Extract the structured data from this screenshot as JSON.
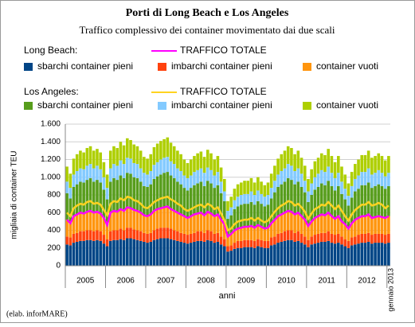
{
  "chart_data": {
    "type": "stacked-bar-line",
    "title": "Porti di Long Beach e Los Angeles",
    "subtitle": "Traffico complessivo dei container movimentato dai due scali",
    "ylabel": "migliaia di container TEU",
    "xlabel": "anni",
    "note": "(elab. inforMARE)",
    "x_groups": [
      "2005",
      "2006",
      "2007",
      "2008",
      "2009",
      "2010",
      "2011",
      "2012"
    ],
    "categories": [
      null,
      null,
      null,
      null,
      null,
      null,
      null,
      null,
      null,
      null,
      null,
      null,
      null,
      null,
      null,
      null,
      null,
      null,
      null,
      null,
      null,
      null,
      null,
      null,
      null,
      null,
      null,
      null,
      null,
      null,
      null,
      null,
      null,
      null,
      null,
      null,
      null,
      null,
      null,
      null,
      null,
      null,
      null,
      null,
      null,
      null,
      null,
      null,
      null,
      null,
      null,
      null,
      null,
      null,
      null,
      null,
      null,
      null,
      null,
      null,
      null,
      null,
      null,
      null,
      null,
      null,
      null,
      null,
      null,
      null,
      null,
      null,
      null,
      null,
      null,
      null,
      null,
      null,
      null,
      null,
      null,
      null,
      null,
      null,
      null,
      null,
      null,
      null,
      null,
      null,
      null,
      null,
      null,
      null,
      null,
      null,
      "gennaio 2013"
    ],
    "ylim": [
      0,
      1600
    ],
    "yticks": [
      0,
      200,
      400,
      600,
      800,
      {
        "value": 1000,
        "label": "1.000"
      },
      {
        "value": 1200,
        "label": "1.200"
      },
      {
        "value": 1400,
        "label": "1.400"
      },
      {
        "value": 1600,
        "label": "1.600"
      }
    ],
    "grid": true,
    "groups": [
      {
        "label": "Long Beach:",
        "series": [
          {
            "name": "TRAFFICO TOTALE",
            "kind": "line",
            "color": "#ff00ff",
            "values": [
              520,
              480,
              560,
              580,
              600,
              590,
              610,
              620,
              600,
              610,
              590,
              540,
              460,
              600,
              620,
              610,
              640,
              620,
              660,
              650,
              630,
              620,
              600,
              570,
              560,
              580,
              620,
              640,
              650,
              660,
              670,
              640,
              620,
              600,
              580,
              560,
              540,
              560,
              580,
              590,
              600,
              570,
              610,
              590,
              560,
              580,
              520,
              470,
              330,
              360,
              400,
              420,
              430,
              440,
              440,
              450,
              430,
              460,
              440,
              420,
              430,
              480,
              520,
              560,
              580,
              600,
              620,
              610,
              580,
              600,
              560,
              520,
              450,
              500,
              540,
              560,
              580,
              570,
              600,
              560,
              530,
              560,
              500,
              470,
              420,
              480,
              520,
              540,
              560,
              560,
              580,
              540,
              550,
              560,
              550,
              540,
              560
            ]
          },
          {
            "name": "sbarchi container pieni",
            "kind": "bar",
            "color": "#004586",
            "values": [
              240,
              230,
              260,
              270,
              280,
              280,
              290,
              290,
              280,
              290,
              280,
              250,
              220,
              280,
              290,
              290,
              300,
              290,
              310,
              310,
              300,
              290,
              280,
              270,
              260,
              270,
              290,
              300,
              310,
              310,
              310,
              300,
              290,
              280,
              270,
              260,
              250,
              260,
              270,
              280,
              280,
              270,
              290,
              280,
              260,
              270,
              240,
              220,
              160,
              170,
              190,
              200,
              200,
              210,
              210,
              210,
              200,
              220,
              210,
              200,
              200,
              230,
              240,
              260,
              270,
              280,
              290,
              290,
              270,
              280,
              260,
              240,
              210,
              240,
              250,
              260,
              270,
              270,
              280,
              260,
              250,
              260,
              240,
              220,
              200,
              230,
              240,
              250,
              260,
              260,
              270,
              250,
              260,
              260,
              260,
              250,
              260
            ]
          },
          {
            "name": "imbarchi container pieni",
            "kind": "bar",
            "color": "#ff420e",
            "values": [
              90,
              90,
              100,
              100,
              110,
              110,
              110,
              110,
              110,
              110,
              110,
              100,
              80,
              110,
              110,
              110,
              120,
              110,
              120,
              120,
              110,
              110,
              110,
              100,
              100,
              100,
              110,
              120,
              120,
              120,
              120,
              120,
              110,
              110,
              100,
              100,
              100,
              100,
              100,
              110,
              110,
              100,
              110,
              110,
              100,
              100,
              90,
              80,
              60,
              60,
              70,
              80,
              80,
              80,
              80,
              80,
              80,
              80,
              80,
              80,
              80,
              90,
              90,
              100,
              100,
              110,
              110,
              110,
              100,
              110,
              100,
              90,
              80,
              90,
              100,
              100,
              100,
              100,
              110,
              100,
              100,
              100,
              90,
              80,
              80,
              90,
              90,
              100,
              100,
              100,
              100,
              100,
              100,
              100,
              100,
              100,
              100
            ]
          },
          {
            "name": "container vuoti",
            "kind": "bar",
            "color": "#ff950e",
            "values": [
              190,
              160,
              200,
              210,
              210,
              200,
              210,
              220,
              210,
              210,
              200,
              190,
              160,
              210,
              220,
              210,
              220,
              220,
              230,
              220,
              220,
              220,
              210,
              200,
              200,
              210,
              220,
              220,
              220,
              230,
              240,
              220,
              220,
              210,
              210,
              200,
              190,
              200,
              210,
              200,
              210,
              200,
              210,
              200,
              200,
              210,
              190,
              170,
              110,
              130,
              140,
              140,
              150,
              150,
              150,
              160,
              150,
              160,
              150,
              140,
              150,
              160,
              190,
              200,
              210,
              210,
              220,
              210,
              210,
              210,
              200,
              190,
              160,
              170,
              190,
              200,
              210,
              200,
              210,
              200,
              180,
              200,
              170,
              170,
              140,
              160,
              190,
              190,
              200,
              200,
              210,
              190,
              190,
              200,
              190,
              190,
              200
            ]
          }
        ]
      },
      {
        "label": "Los Angeles:",
        "series": [
          {
            "name": "TRAFFICO TOTALE",
            "kind": "line",
            "color": "#ffd320",
            "values": [
              600,
              560,
              650,
              680,
              700,
              690,
              720,
              730,
              700,
              710,
              690,
              630,
              570,
              700,
              730,
              720,
              760,
              740,
              780,
              770,
              740,
              730,
              700,
              660,
              650,
              680,
              720,
              740,
              760,
              770,
              780,
              750,
              730,
              700,
              680,
              640,
              620,
              640,
              660,
              680,
              690,
              660,
              700,
              680,
              640,
              660,
              590,
              510,
              400,
              420,
              470,
              500,
              510,
              520,
              520,
              540,
              510,
              540,
              510,
              490,
              510,
              560,
              610,
              650,
              680,
              700,
              730,
              720,
              680,
              700,
              660,
              610,
              530,
              590,
              640,
              660,
              690,
              680,
              720,
              680,
              640,
              680,
              620,
              560,
              510,
              580,
              630,
              660,
              690,
              690,
              720,
              680,
              690,
              710,
              690,
              650,
              680
            ]
          },
          {
            "name": "sbarchi container pieni",
            "kind": "bar",
            "color": "#579d1c",
            "values": [
              300,
              280,
              330,
              340,
              350,
              350,
              360,
              370,
              350,
              360,
              350,
              320,
              290,
              350,
              370,
              360,
              380,
              370,
              390,
              390,
              370,
              370,
              350,
              330,
              330,
              340,
              360,
              370,
              380,
              390,
              390,
              380,
              370,
              350,
              340,
              320,
              310,
              320,
              330,
              340,
              350,
              330,
              350,
              340,
              320,
              330,
              300,
              260,
              200,
              210,
              240,
              250,
              260,
              260,
              260,
              270,
              260,
              270,
              260,
              250,
              260,
              280,
              310,
              330,
              340,
              350,
              370,
              360,
              340,
              350,
              330,
              310,
              270,
              300,
              320,
              330,
              350,
              340,
              360,
              340,
              320,
              340,
              310,
              280,
              260,
              290,
              320,
              330,
              350,
              350,
              360,
              340,
              350,
              360,
              350,
              330,
              340
            ]
          },
          {
            "name": "imbarchi container pieni",
            "kind": "bar",
            "color": "#83caff",
            "values": [
              130,
              120,
              140,
              150,
              150,
              150,
              160,
              160,
              150,
              160,
              150,
              140,
              130,
              150,
              160,
              160,
              170,
              160,
              170,
              170,
              160,
              160,
              150,
              150,
              140,
              150,
              160,
              160,
              170,
              170,
              170,
              160,
              160,
              150,
              150,
              140,
              140,
              140,
              150,
              150,
              150,
              150,
              150,
              150,
              140,
              150,
              130,
              110,
              90,
              90,
              100,
              110,
              110,
              110,
              110,
              120,
              110,
              120,
              110,
              110,
              110,
              120,
              130,
              140,
              150,
              150,
              160,
              160,
              150,
              150,
              150,
              130,
              120,
              130,
              140,
              150,
              150,
              150,
              160,
              150,
              140,
              150,
              140,
              120,
              110,
              130,
              140,
              150,
              150,
              150,
              160,
              150,
              150,
              160,
              150,
              140,
              150
            ]
          },
          {
            "name": "container vuoti",
            "kind": "bar",
            "color": "#aecf00",
            "values": [
              170,
              160,
              180,
              190,
              200,
              190,
              200,
              200,
              200,
              190,
              190,
              170,
              150,
              200,
              200,
              200,
              210,
              210,
              220,
              210,
              210,
              200,
              200,
              180,
              180,
              190,
              200,
              210,
              210,
              210,
              220,
              210,
              200,
              200,
              190,
              180,
              170,
              180,
              180,
              190,
              190,
              180,
              200,
              190,
              180,
              180,
              160,
              140,
              110,
              120,
              130,
              140,
              140,
              150,
              150,
              150,
              140,
              150,
              140,
              130,
              140,
              160,
              170,
              180,
              190,
              200,
              200,
              200,
              190,
              200,
              180,
              170,
              140,
              160,
              180,
              180,
              190,
              190,
              200,
              190,
              180,
              190,
              170,
              160,
              140,
              160,
              170,
              180,
              190,
              190,
              200,
              190,
              190,
              190,
              190,
              180,
              190
            ]
          }
        ]
      }
    ]
  }
}
